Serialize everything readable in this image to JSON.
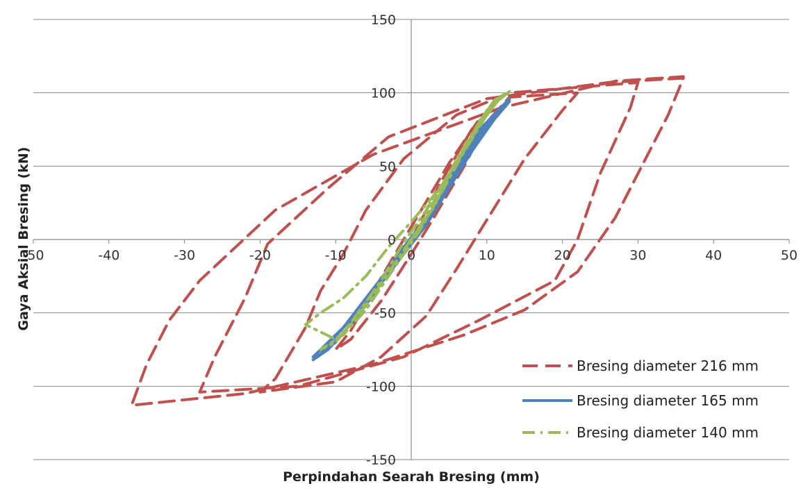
{
  "chart_data": {
    "type": "line",
    "title": "",
    "xlabel": "Perpindahan Searah Bresing (mm)",
    "ylabel": "Gaya Aksial Bresing (kN)",
    "xlim": [
      -50,
      50
    ],
    "ylim": [
      -150,
      150
    ],
    "x_ticks": [
      "-50",
      "-40",
      "-30",
      "-20",
      "-10",
      "0",
      "10",
      "20",
      "30",
      "40",
      "50"
    ],
    "y_ticks": [
      "150",
      "100",
      "50",
      "0",
      "-50",
      "-100",
      "-150"
    ],
    "grid": "horizontal",
    "legend_position": "bottom-right",
    "series": [
      {
        "name": "Bresing diameter 216 mm",
        "color": "#C0504D",
        "style": "dashed",
        "points": [
          [
            0,
            0
          ],
          [
            4,
            40
          ],
          [
            8,
            75
          ],
          [
            11,
            92
          ],
          [
            9,
            82
          ],
          [
            5,
            52
          ],
          [
            2,
            26
          ],
          [
            -1,
            0
          ],
          [
            -5,
            -35
          ],
          [
            -8,
            -62
          ],
          [
            -10,
            -75
          ],
          [
            -8,
            -68
          ],
          [
            -4,
            -42
          ],
          [
            0,
            -10
          ],
          [
            3,
            15
          ],
          [
            7,
            50
          ],
          [
            10,
            80
          ],
          [
            13,
            97
          ],
          [
            22,
            100
          ],
          [
            20,
            88
          ],
          [
            15,
            55
          ],
          [
            12,
            30
          ],
          [
            9,
            5
          ],
          [
            6,
            -20
          ],
          [
            2,
            -52
          ],
          [
            -4,
            -80
          ],
          [
            -10,
            -97
          ],
          [
            -20,
            -104
          ],
          [
            -18,
            -95
          ],
          [
            -14,
            -60
          ],
          [
            -12,
            -35
          ],
          [
            -9,
            -10
          ],
          [
            -6,
            20
          ],
          [
            -1,
            55
          ],
          [
            6,
            85
          ],
          [
            13,
            100
          ],
          [
            30,
            107
          ],
          [
            29,
            90
          ],
          [
            25,
            45
          ],
          [
            22,
            0
          ],
          [
            19,
            -28
          ],
          [
            9,
            -55
          ],
          [
            -1,
            -80
          ],
          [
            -15,
            -100
          ],
          [
            -28,
            -104
          ],
          [
            -26,
            -80
          ],
          [
            -22,
            -40
          ],
          [
            -19,
            -3
          ],
          [
            -11,
            35
          ],
          [
            -3,
            70
          ],
          [
            10,
            96
          ],
          [
            26,
            107
          ],
          [
            36,
            110
          ],
          [
            34,
            85
          ],
          [
            30,
            45
          ],
          [
            27,
            15
          ],
          [
            22,
            -22
          ],
          [
            15,
            -48
          ],
          [
            7,
            -65
          ],
          [
            -5,
            -85
          ],
          [
            -22,
            -105
          ],
          [
            -37,
            -113
          ],
          [
            -35,
            -85
          ],
          [
            -32,
            -55
          ],
          [
            -28,
            -28
          ],
          [
            -18,
            20
          ],
          [
            -5,
            58
          ],
          [
            12,
            90
          ],
          [
            27,
            108
          ],
          [
            36,
            111
          ]
        ]
      },
      {
        "name": "Bresing diameter 165 mm",
        "color": "#4F81BD",
        "style": "solid",
        "points": [
          [
            0,
            0
          ],
          [
            3,
            20
          ],
          [
            6,
            50
          ],
          [
            9,
            75
          ],
          [
            12,
            90
          ],
          [
            13,
            94
          ],
          [
            11,
            82
          ],
          [
            8,
            60
          ],
          [
            5,
            35
          ],
          [
            2,
            10
          ],
          [
            -1,
            -10
          ],
          [
            -4,
            -30
          ],
          [
            -7,
            -50
          ],
          [
            -10,
            -65
          ],
          [
            -13,
            -80
          ],
          [
            -12,
            -78
          ],
          [
            -9,
            -60
          ],
          [
            -6,
            -40
          ],
          [
            -3,
            -20
          ],
          [
            0,
            0
          ],
          [
            3,
            22
          ],
          [
            7,
            55
          ],
          [
            10,
            80
          ],
          [
            13,
            96
          ],
          [
            11,
            84
          ],
          [
            7,
            55
          ],
          [
            4,
            30
          ],
          [
            1,
            5
          ],
          [
            -3,
            -22
          ],
          [
            -7,
            -52
          ],
          [
            -11,
            -75
          ],
          [
            -13,
            -82
          ],
          [
            -10,
            -70
          ],
          [
            -6,
            -45
          ],
          [
            -2,
            -12
          ],
          [
            2,
            15
          ],
          [
            6,
            45
          ],
          [
            10,
            78
          ],
          [
            13,
            95
          ]
        ]
      },
      {
        "name": "Bresing diameter 140 mm",
        "color": "#9BBB59",
        "style": "dash-dot",
        "points": [
          [
            0,
            0
          ],
          [
            3,
            22
          ],
          [
            6,
            55
          ],
          [
            9,
            80
          ],
          [
            11,
            95
          ],
          [
            13,
            101
          ],
          [
            10,
            88
          ],
          [
            7,
            62
          ],
          [
            4,
            35
          ],
          [
            1,
            8
          ],
          [
            -2,
            -15
          ],
          [
            -5,
            -38
          ],
          [
            -8,
            -58
          ],
          [
            -10,
            -68
          ],
          [
            -14,
            -58
          ],
          [
            -12,
            -50
          ],
          [
            -9,
            -40
          ],
          [
            -6,
            -25
          ],
          [
            -3,
            -5
          ],
          [
            0,
            12
          ],
          [
            3,
            30
          ],
          [
            6,
            52
          ],
          [
            9,
            78
          ],
          [
            12,
            98
          ],
          [
            10,
            85
          ],
          [
            7,
            60
          ],
          [
            4,
            32
          ],
          [
            1,
            5
          ],
          [
            -3,
            -25
          ],
          [
            -6,
            -48
          ],
          [
            -9,
            -65
          ],
          [
            -12,
            -75
          ],
          [
            -10,
            -70
          ],
          [
            -7,
            -50
          ],
          [
            -4,
            -28
          ],
          [
            -1,
            -2
          ],
          [
            2,
            20
          ],
          [
            5,
            45
          ],
          [
            8,
            70
          ],
          [
            11,
            95
          ],
          [
            13,
            100
          ]
        ]
      }
    ]
  }
}
